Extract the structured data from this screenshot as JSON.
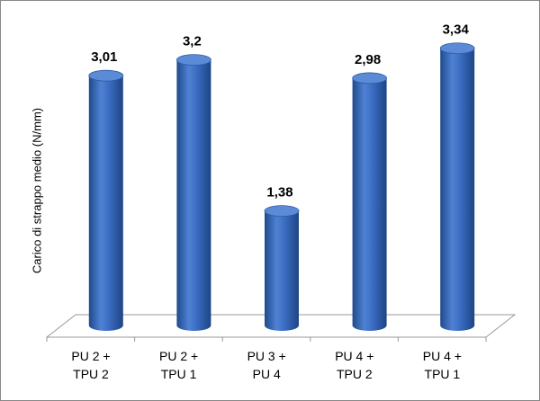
{
  "chart_data": {
    "type": "bar",
    "y_label": "Carico di strappo medio (N/mm)",
    "categories": [
      "PU 2 +\nTPU 2",
      "PU 2 +\nTPU 1",
      "PU 3 +\nPU 4",
      "PU 4 +\nTPU 2",
      "PU 4 +\nTPU 1"
    ],
    "values": [
      3.01,
      3.2,
      1.38,
      2.98,
      3.34
    ],
    "value_labels": [
      "3,01",
      "3,2",
      "1,38",
      "2,98",
      "3,34"
    ],
    "color": "#3a6bc0"
  }
}
